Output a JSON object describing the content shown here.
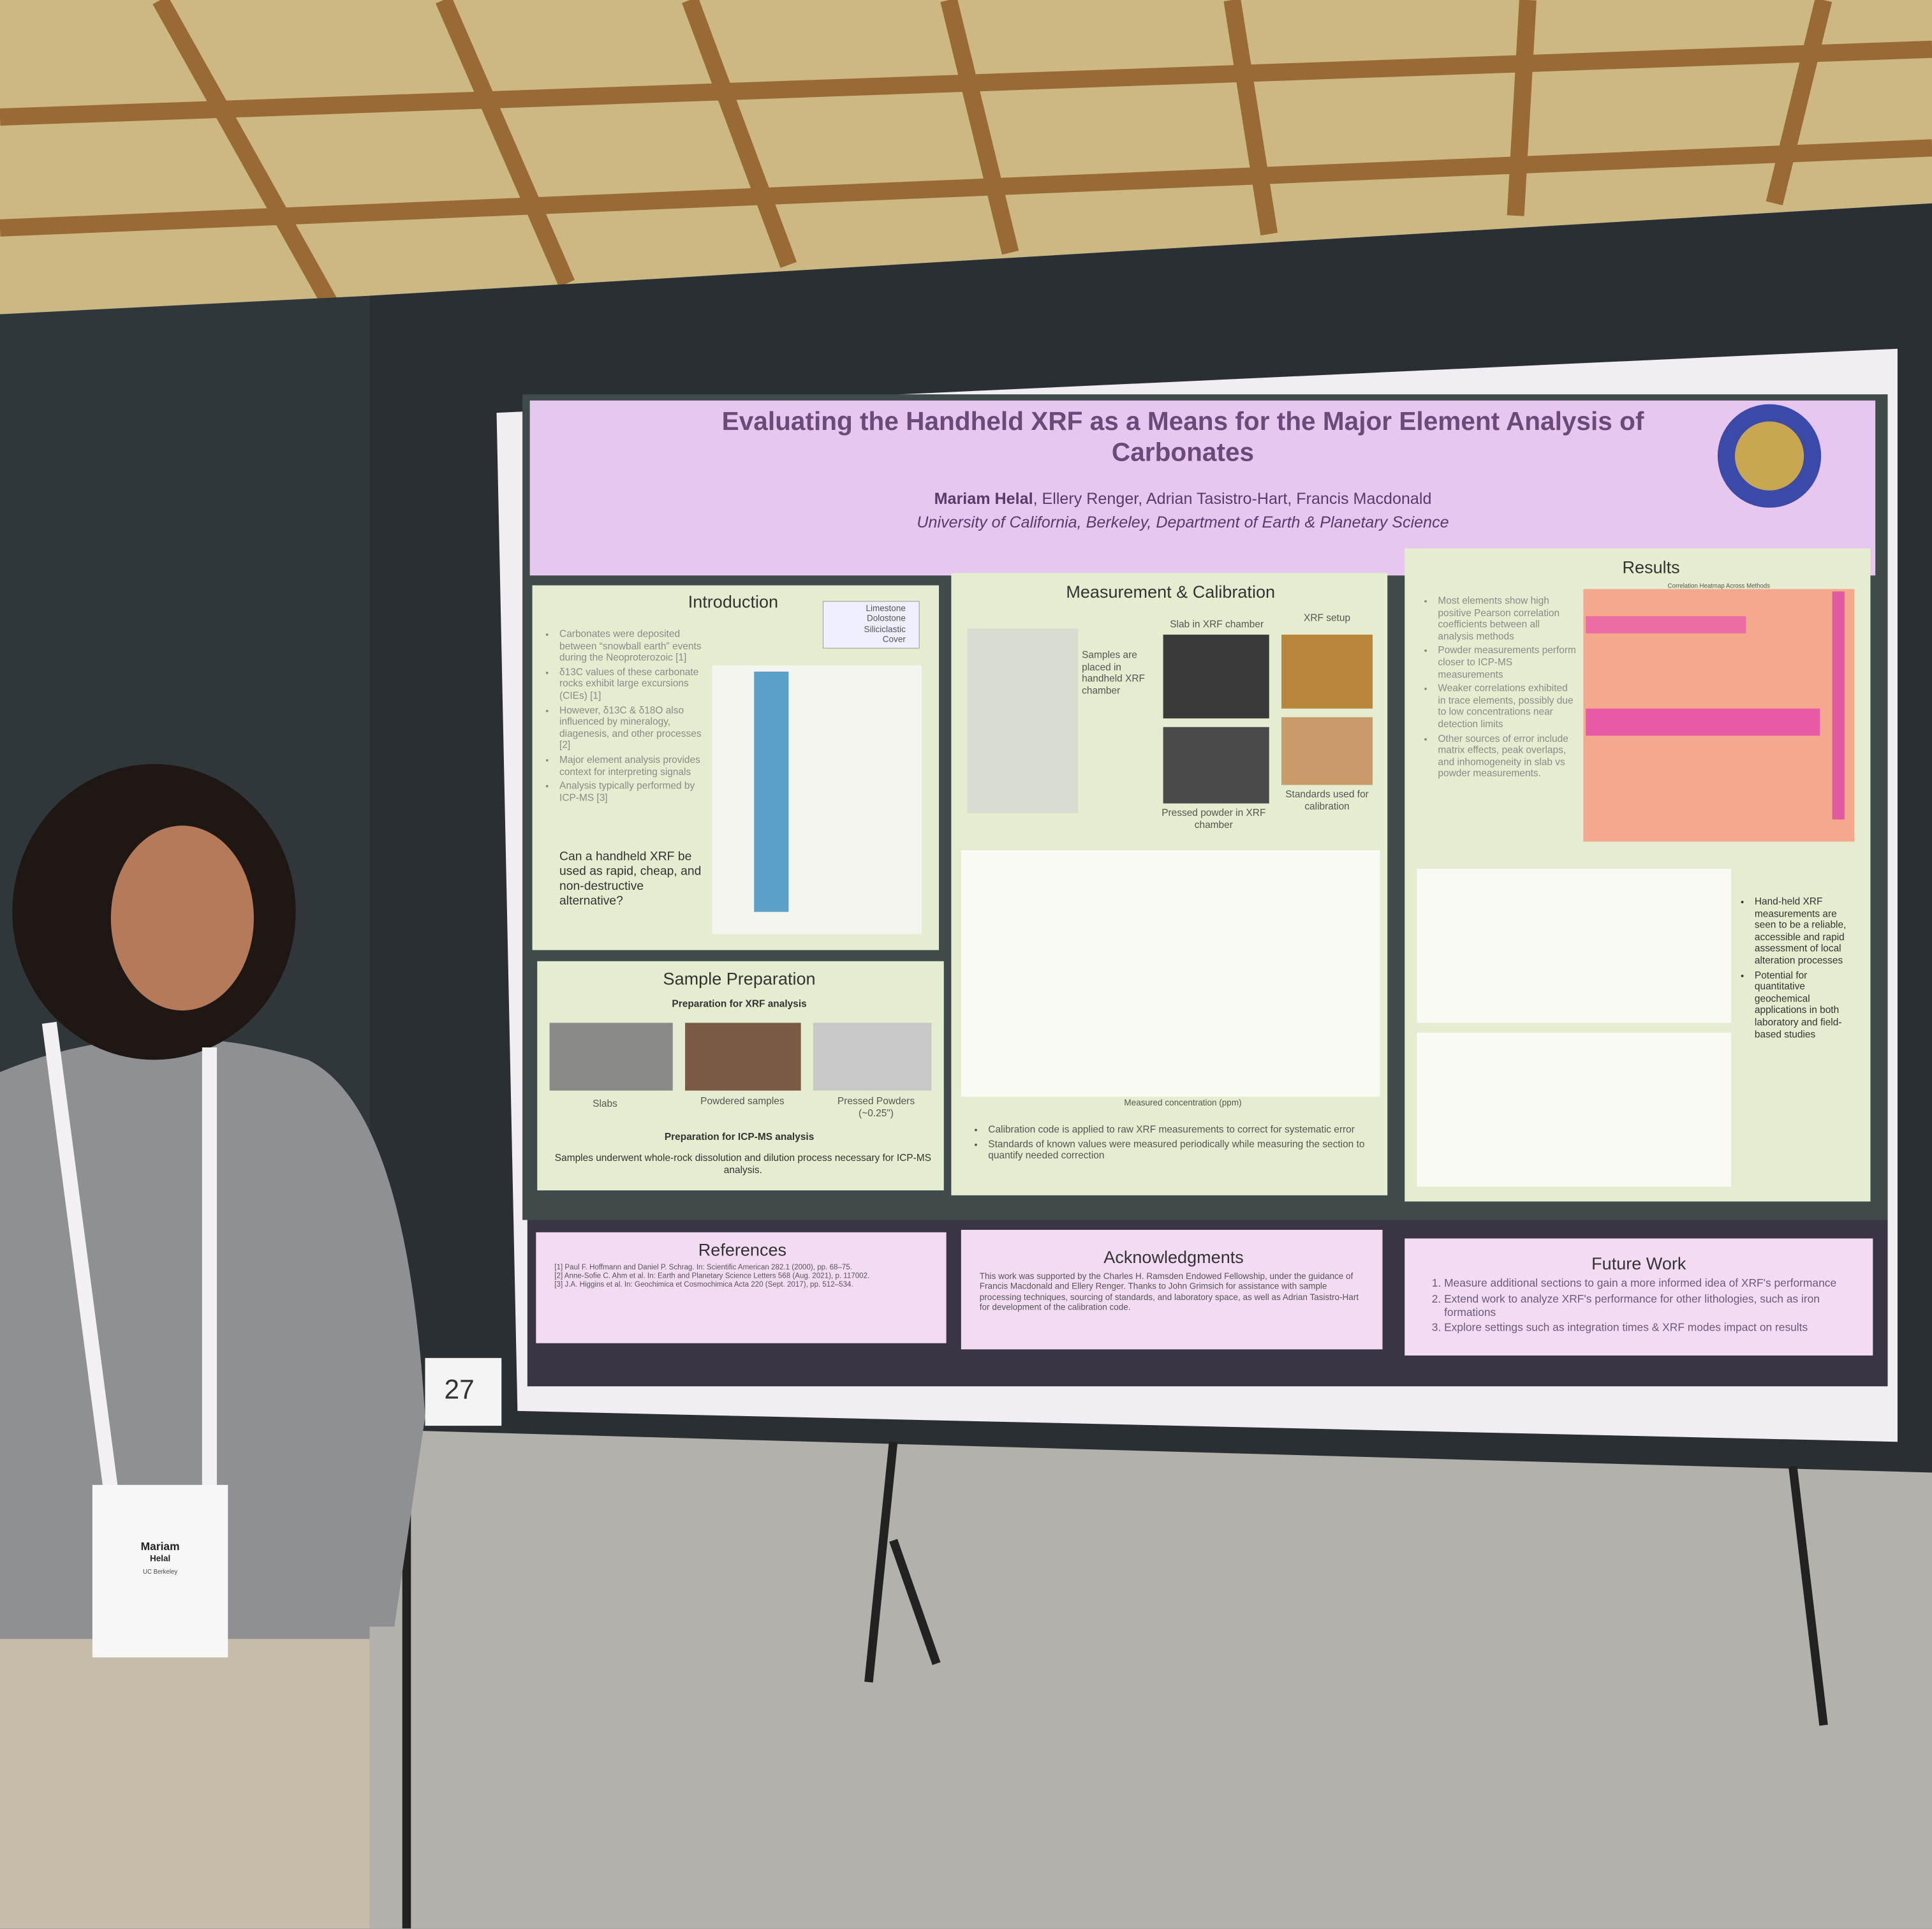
{
  "poster": {
    "title": "Evaluating the Handheld XRF as a Means for the Major Element Analysis of Carbonates",
    "lead_author": "Mariam Helal",
    "coauthors": ", Ellery Renger, Adrian Tasistro-Hart, Francis Macdonald",
    "affiliation": "University of California, Berkeley, Department of Earth & Planetary Science",
    "introduction": {
      "heading": "Introduction",
      "bullets": [
        "Carbonates were deposited between “snowball earth” events during the Neoproterozoic [1]",
        "δ13C values of these carbonate rocks exhibit large excursions (CIEs) [1]",
        "However, δ13C & δ18O also influenced by mineralogy, diagenesis, and other processes [2]",
        "Major element analysis provides context for interpreting signals",
        "Analysis typically performed by ICP-MS [3]"
      ],
      "question": "Can a handheld XRF be used as rapid, cheap, and non-destructive alternative?",
      "legend": [
        "Limestone",
        "Dolostone",
        "Siliciclastic",
        "Cover"
      ]
    },
    "measurement": {
      "heading": "Measurement & Calibration",
      "xrf_note": "Samples are placed in handheld XRF chamber",
      "slab": "Slab in XRF chamber",
      "setup": "XRF setup",
      "powder": "Pressed powder in XRF chamber",
      "standards": "Standards used for calibration",
      "x_label": "Measured concentration (ppm)",
      "bullets": [
        "Calibration code is applied to raw XRF measurements to correct for systematic error",
        "Standards of known values were measured periodically while measuring the section to quantify needed correction"
      ]
    },
    "sample_preparation": {
      "heading": "Sample Preparation",
      "xrf_heading": "Preparation for XRF analysis",
      "slabs": "Slabs",
      "powdered": "Powdered samples",
      "pressed": "Pressed Powders (~0.25\")",
      "icp_heading": "Preparation for ICP-MS analysis",
      "icp_text": "Samples underwent whole-rock dissolution and dilution process necessary for ICP-MS analysis."
    },
    "results": {
      "heading": "Results",
      "heatmap_title": "Correlation Heatmap Across Methods",
      "bullets": [
        "Most elements show high positive Pearson correlation coefficients between all analysis methods",
        "Powder measurements perform closer to ICP-MS measurements",
        "Weaker correlations exhibited in trace elements, possibly due to low concentrations near detection limits",
        "Other sources of error include matrix effects, peak overlaps, and inhomogeneity in slab vs powder measurements."
      ],
      "conclusions": [
        "Hand-held XRF measurements are seen to be a reliable, accessible and rapid assessment of local alteration processes",
        "Potential for quantitative geochemical applications in both laboratory and field-based studies"
      ]
    },
    "references": {
      "heading": "References",
      "items": [
        "[1] Paul F. Hoffmann and Daniel P. Schrag. In: Scientific American 282.1 (2000), pp. 68–75.",
        "[2] Anne-Sofie C. Ahm et al. In: Earth and Planetary Science Letters 568 (Aug. 2021), p. 117002.",
        "[3] J.A. Higgins et al. In: Geochimica et Cosmochimica Acta 220 (Sept. 2017), pp. 512–534."
      ]
    },
    "acknowledgments": {
      "heading": "Acknowledgments",
      "text": "This work was supported by the Charles H. Ramsden Endowed Fellowship, under the guidance of Francis Macdonald and Ellery Renger. Thanks to John Grimsich for assistance with sample processing techniques, sourcing of standards, and laboratory space, as well as Adrian Tasistro-Hart for development of the calibration code."
    },
    "future_work": {
      "heading": "Future Work",
      "items": [
        "Measure additional sections to gain a more informed idea of XRF's performance",
        "Extend work to analyze XRF's performance for other lithologies, such as iron formations",
        "Explore settings such as integration times & XRF modes impact on results"
      ]
    }
  },
  "board_number": "27",
  "badge": {
    "first": "Mariam",
    "last": "Helal",
    "school": "UC Berkeley"
  }
}
